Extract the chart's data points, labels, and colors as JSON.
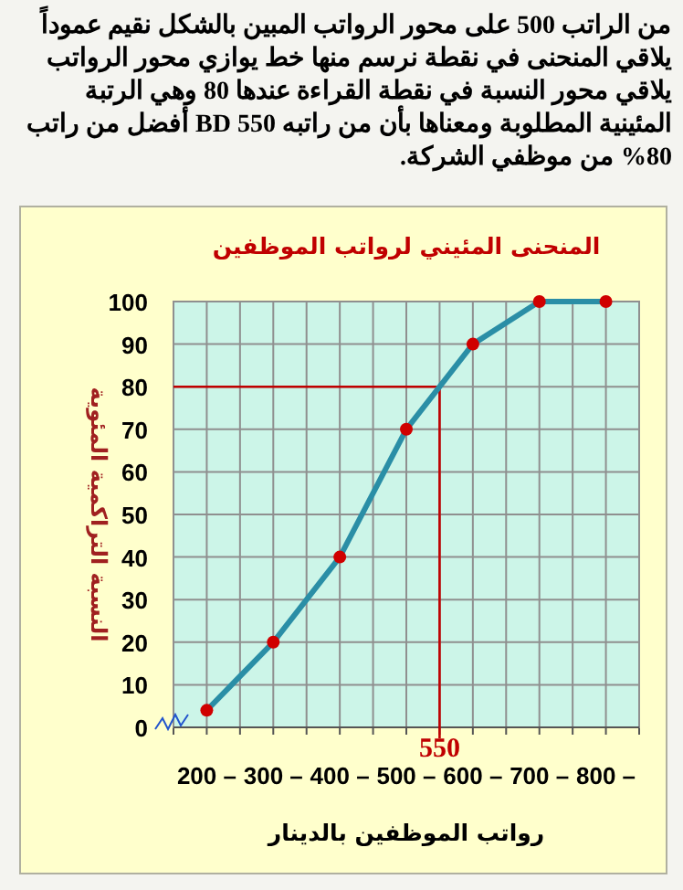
{
  "chart_data": {
    "type": "line",
    "title": "المنحنى المئيني لرواتب الموظفين",
    "xlabel": "رواتب الموظفين بالدينار",
    "ylabel": "النسبة التراكمية المئوية",
    "annotations": [
      "من الراتب 500 على محور الرواتب المبين بالشكل نقيم عموداً يلاقي المنحنى في نقطة نرسم منها خط يوازي محور الرواتب يلاقي محور النسبة في نقطة القراءة عندها 80 وهي الرتبة المئينية المطلوبة ومعناها بأن من راتبه 550 BD أفضل من راتب 80% من موظفي الشركة."
    ],
    "x": [
      200,
      300,
      400,
      500,
      600,
      700,
      800
    ],
    "series": [
      {
        "color": "#2a8ea6",
        "marker": "none",
        "values": [
          4,
          20,
          40,
          70,
          90,
          100,
          100
        ]
      },
      {
        "type": "scatter",
        "color": "#d00000",
        "marker": "circle",
        "values": [
          4,
          20,
          40,
          70,
          90,
          100,
          100
        ]
      }
    ],
    "xlim": [
      150,
      850
    ],
    "ylim": [
      0,
      100
    ],
    "xticks": [
      {
        "value": 150,
        "label": null
      },
      {
        "value": 200,
        "label": "200 –"
      },
      {
        "value": 250,
        "label": null
      },
      {
        "value": 300,
        "label": "300 –"
      },
      {
        "value": 350,
        "label": null
      },
      {
        "value": 400,
        "label": "400 –"
      },
      {
        "value": 450,
        "label": null
      },
      {
        "value": 500,
        "label": "500 –"
      },
      {
        "value": 550,
        "label": null
      },
      {
        "value": 600,
        "label": "600 –"
      },
      {
        "value": 650,
        "label": null
      },
      {
        "value": 700,
        "label": "700 –"
      },
      {
        "value": 750,
        "label": null
      },
      {
        "value": 800,
        "label": "800 –"
      },
      {
        "value": 850,
        "label": null
      }
    ],
    "yticks": [
      0,
      10,
      20,
      30,
      40,
      50,
      60,
      70,
      80,
      90,
      100
    ],
    "ref_lines": [
      {
        "axis": "x",
        "value": 550,
        "label": "550",
        "color": "#c00000"
      },
      {
        "axis": "y",
        "value": 80,
        "color": "#c00000"
      }
    ],
    "grid": true,
    "line_style": "solid"
  }
}
